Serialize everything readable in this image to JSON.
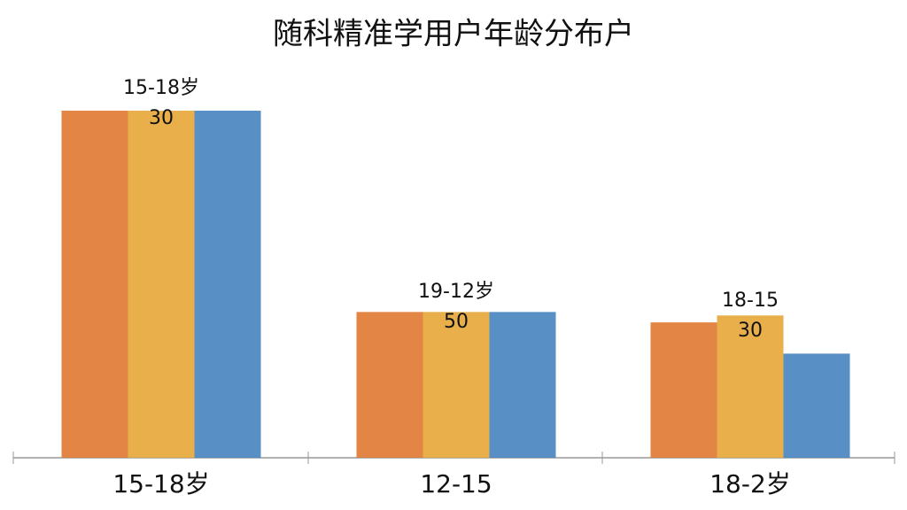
{
  "chart_data": {
    "type": "bar",
    "title": "随科精准学用户年龄分布户",
    "categories": [
      "15-18岁",
      "12-15",
      "18-2岁"
    ],
    "series": [
      {
        "color": "#e07b35",
        "values": [
          100,
          42,
          39
        ]
      },
      {
        "color": "#e6a83c",
        "values": [
          100,
          42,
          41
        ]
      },
      {
        "color": "#4a86c0",
        "values": [
          100,
          42,
          30
        ]
      }
    ],
    "ylim": [
      0,
      100
    ],
    "annotations": [
      {
        "label": "15-18岁",
        "value": "30"
      },
      {
        "label": "19-12岁",
        "value": "50"
      },
      {
        "label": "18-15",
        "value": "30"
      }
    ]
  }
}
